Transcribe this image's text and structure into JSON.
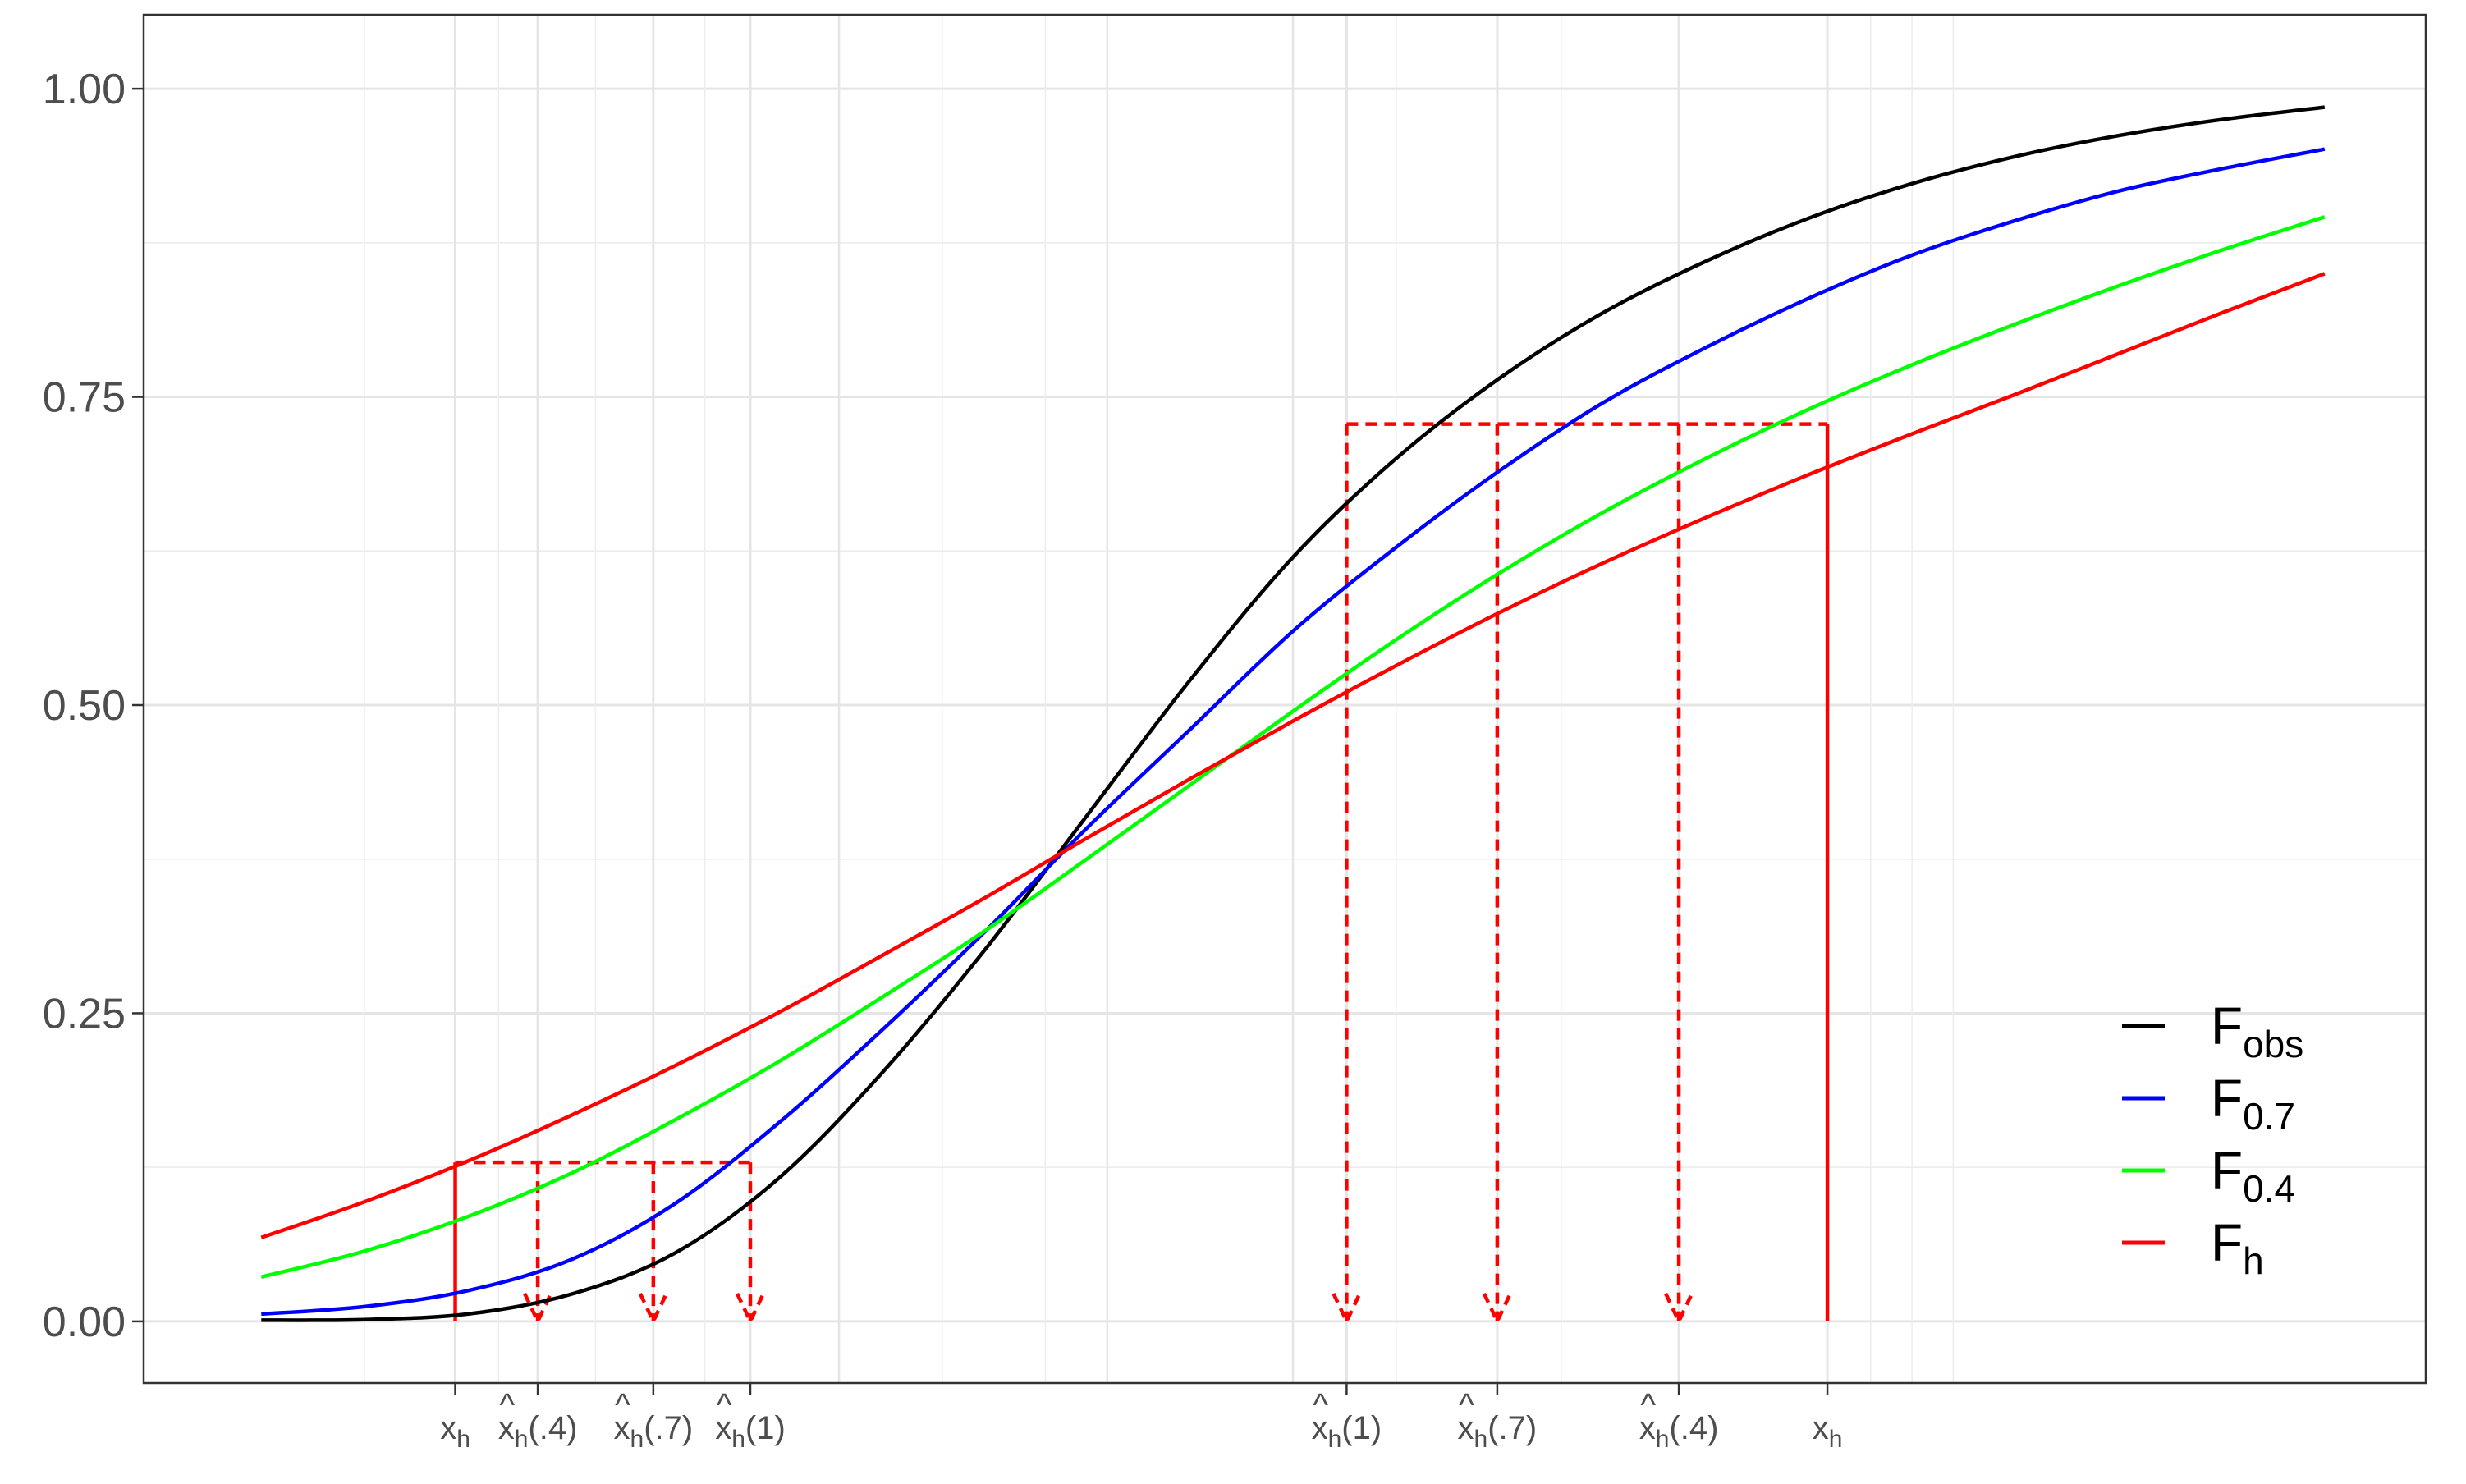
{
  "chart_data": {
    "type": "line",
    "title": "",
    "xlabel": "",
    "ylabel": "",
    "x_unit_note": "x values in relative data units (0 = left end, 1 = right end of curves)",
    "xlim": [
      -0.057,
      1.049
    ],
    "ylim": [
      -0.05,
      1.06
    ],
    "yticks": [
      0,
      0.25,
      0.5,
      0.75,
      1
    ],
    "ytick_labels": [
      "0.00",
      "0.25",
      "0.50",
      "0.75",
      "1.00"
    ],
    "grid": true,
    "legend_position": "bottom-right",
    "series": [
      {
        "key": "obs",
        "legend_main": "F",
        "legend_sub": "obs",
        "color": "#000000",
        "points": [
          [
            0,
            0.001
          ],
          [
            0.05,
            0.0015
          ],
          [
            0.1,
            0.006
          ],
          [
            0.15,
            0.022
          ],
          [
            0.2,
            0.055
          ],
          [
            0.25,
            0.115
          ],
          [
            0.3,
            0.2
          ],
          [
            0.35,
            0.3
          ],
          [
            0.4,
            0.41
          ],
          [
            0.45,
            0.52
          ],
          [
            0.5,
            0.62
          ],
          [
            0.55,
            0.7
          ],
          [
            0.6,
            0.765
          ],
          [
            0.65,
            0.818
          ],
          [
            0.7,
            0.86
          ],
          [
            0.75,
            0.895
          ],
          [
            0.8,
            0.923
          ],
          [
            0.85,
            0.945
          ],
          [
            0.9,
            0.962
          ],
          [
            0.95,
            0.975
          ],
          [
            1,
            0.985
          ]
        ]
      },
      {
        "key": "f07",
        "legend_main": "F",
        "legend_sub": "0.7",
        "color": "#0000ff",
        "points": [
          [
            0,
            0.006
          ],
          [
            0.05,
            0.012
          ],
          [
            0.1,
            0.025
          ],
          [
            0.15,
            0.05
          ],
          [
            0.2,
            0.095
          ],
          [
            0.25,
            0.16
          ],
          [
            0.3,
            0.235
          ],
          [
            0.35,
            0.315
          ],
          [
            0.4,
            0.4
          ],
          [
            0.45,
            0.48
          ],
          [
            0.5,
            0.56
          ],
          [
            0.55,
            0.628
          ],
          [
            0.6,
            0.69
          ],
          [
            0.65,
            0.745
          ],
          [
            0.7,
            0.79
          ],
          [
            0.75,
            0.83
          ],
          [
            0.8,
            0.865
          ],
          [
            0.85,
            0.893
          ],
          [
            0.9,
            0.917
          ],
          [
            0.95,
            0.935
          ],
          [
            1,
            0.951
          ]
        ]
      },
      {
        "key": "f04",
        "legend_main": "F",
        "legend_sub": "0.4",
        "color": "#00ff00",
        "points": [
          [
            0,
            0.036
          ],
          [
            0.05,
            0.057
          ],
          [
            0.1,
            0.085
          ],
          [
            0.15,
            0.12
          ],
          [
            0.2,
            0.163
          ],
          [
            0.25,
            0.21
          ],
          [
            0.3,
            0.262
          ],
          [
            0.35,
            0.316
          ],
          [
            0.4,
            0.375
          ],
          [
            0.45,
            0.435
          ],
          [
            0.5,
            0.495
          ],
          [
            0.55,
            0.553
          ],
          [
            0.6,
            0.607
          ],
          [
            0.65,
            0.656
          ],
          [
            0.7,
            0.7
          ],
          [
            0.75,
            0.74
          ],
          [
            0.8,
            0.776
          ],
          [
            0.85,
            0.809
          ],
          [
            0.9,
            0.84
          ],
          [
            0.95,
            0.869
          ],
          [
            1,
            0.896
          ]
        ]
      },
      {
        "key": "h",
        "legend_main": "F",
        "legend_sub": "h",
        "color": "#ff0000",
        "points": [
          [
            0,
            0.068
          ],
          [
            0.05,
            0.097
          ],
          [
            0.1,
            0.13
          ],
          [
            0.15,
            0.167
          ],
          [
            0.2,
            0.207
          ],
          [
            0.25,
            0.25
          ],
          [
            0.3,
            0.296
          ],
          [
            0.35,
            0.343
          ],
          [
            0.4,
            0.392
          ],
          [
            0.45,
            0.44
          ],
          [
            0.5,
            0.487
          ],
          [
            0.55,
            0.532
          ],
          [
            0.6,
            0.575
          ],
          [
            0.65,
            0.615
          ],
          [
            0.7,
            0.652
          ],
          [
            0.75,
            0.687
          ],
          [
            0.8,
            0.72
          ],
          [
            0.85,
            0.752
          ],
          [
            0.9,
            0.785
          ],
          [
            0.95,
            0.818
          ],
          [
            1,
            0.85
          ]
        ]
      }
    ],
    "xticks": [
      {
        "x": 0.094,
        "main": "x",
        "sub": "h",
        "hat": false,
        "arg": ""
      },
      {
        "x": 0.134,
        "main": "x",
        "sub": "h",
        "hat": true,
        "arg": "(.4)"
      },
      {
        "x": 0.19,
        "main": "x",
        "sub": "h",
        "hat": true,
        "arg": "(.7)"
      },
      {
        "x": 0.237,
        "main": "x",
        "sub": "h",
        "hat": true,
        "arg": "(1)"
      },
      {
        "x": 0.526,
        "main": "x",
        "sub": "h",
        "hat": true,
        "arg": "(1)"
      },
      {
        "x": 0.599,
        "main": "x",
        "sub": "h",
        "hat": true,
        "arg": "(.7)"
      },
      {
        "x": 0.687,
        "main": "x",
        "sub": "h",
        "hat": true,
        "arg": "(.4)"
      },
      {
        "x": 0.759,
        "main": "x",
        "sub": "h",
        "hat": false,
        "arg": ""
      }
    ],
    "hat_glyph": "^",
    "lower_mapping": {
      "level": 0.129,
      "source_x": 0.094,
      "targets": [
        0.134,
        0.19,
        0.237
      ]
    },
    "upper_mapping": {
      "level": 0.728,
      "source_x": 0.759,
      "targets": [
        0.526,
        0.599,
        0.687
      ]
    },
    "mapping_color": "#ff0000",
    "minor_grid_x": [
      0.05,
      0.115,
      0.162,
      0.215,
      0.33,
      0.38,
      0.55,
      0.63,
      0.78,
      0.8,
      0.82
    ],
    "major_grid_x": [
      0.28,
      0.41,
      0.5
    ]
  }
}
